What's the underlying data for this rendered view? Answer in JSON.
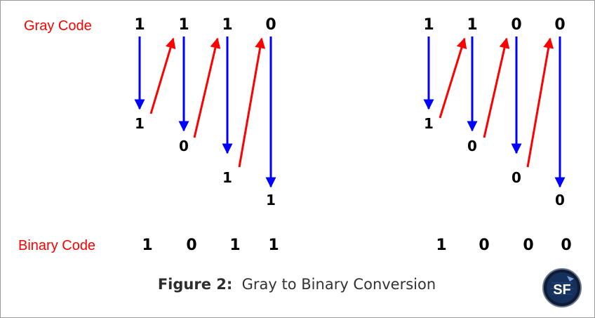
{
  "labels": {
    "gray_code": "Gray Code",
    "binary_code": "Binary Code"
  },
  "colors": {
    "label": "#ff0000",
    "down_arrow": "#0000ff",
    "up_arrow": "#ff0000",
    "text": "#000000"
  },
  "examples": [
    {
      "gray": [
        "1",
        "1",
        "1",
        "0"
      ],
      "binary": [
        "1",
        "0",
        "1",
        "1"
      ],
      "result": [
        "1",
        "0",
        "1",
        "1"
      ]
    },
    {
      "gray": [
        "1",
        "1",
        "0",
        "0"
      ],
      "binary": [
        "1",
        "0",
        "0",
        "0"
      ],
      "result": [
        "1",
        "0",
        "0",
        "0"
      ]
    }
  ],
  "caption": {
    "figure": "Figure 2:",
    "text": "Gray to Binary Conversion"
  },
  "logo": {
    "text": "SF"
  }
}
